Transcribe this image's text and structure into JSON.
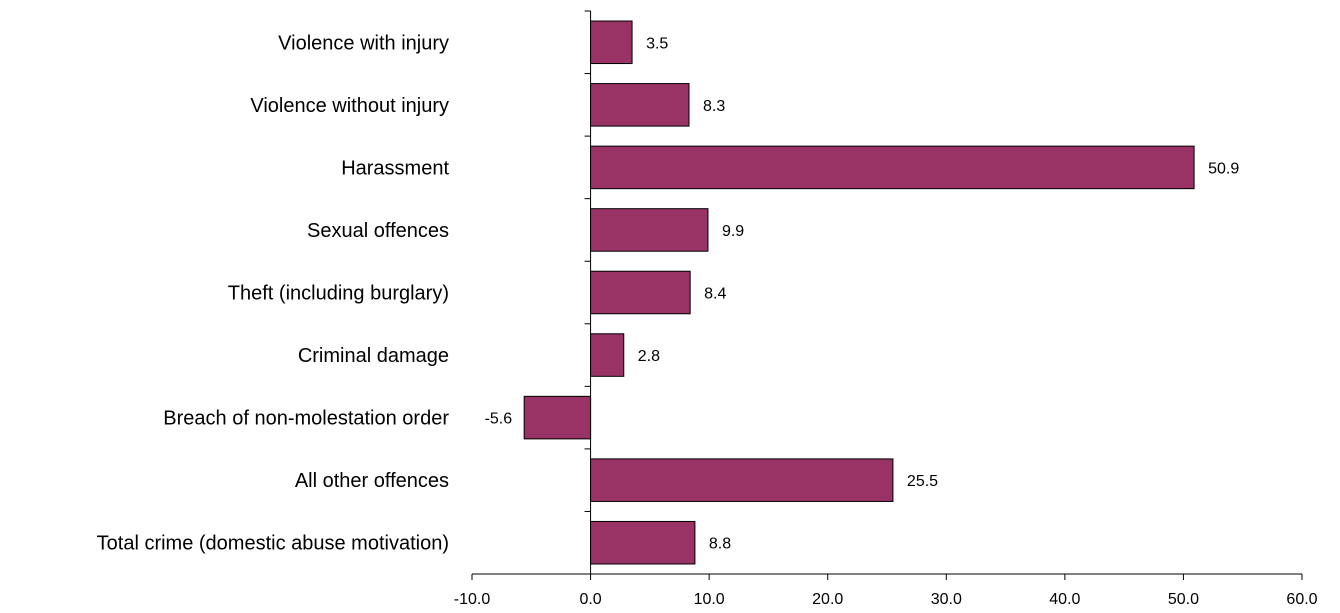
{
  "chart_data": {
    "type": "bar",
    "orientation": "horizontal",
    "categories": [
      "Violence with injury",
      "Violence without injury",
      "Harassment",
      "Sexual offences",
      "Theft (including burglary)",
      "Criminal damage",
      "Breach of non-molestation order",
      "All other offences",
      "Total crime (domestic abuse motivation)"
    ],
    "values": [
      3.5,
      8.3,
      50.9,
      9.9,
      8.4,
      2.8,
      -5.6,
      25.5,
      8.8
    ],
    "value_labels": [
      "3.5",
      "8.3",
      "50.9",
      "9.9",
      "8.4",
      "2.8",
      "-5.6",
      "25.5",
      "8.8"
    ],
    "xlim": [
      -10,
      60
    ],
    "xticks": [
      -10,
      0,
      10,
      20,
      30,
      40,
      50,
      60
    ],
    "xtick_labels": [
      "-10.0",
      "0.0",
      "10.0",
      "20.0",
      "30.0",
      "40.0",
      "50.0",
      "60.0"
    ],
    "bar_color": "#993366",
    "bar_edge_color": "#000000",
    "grid": false,
    "legend": "none"
  }
}
